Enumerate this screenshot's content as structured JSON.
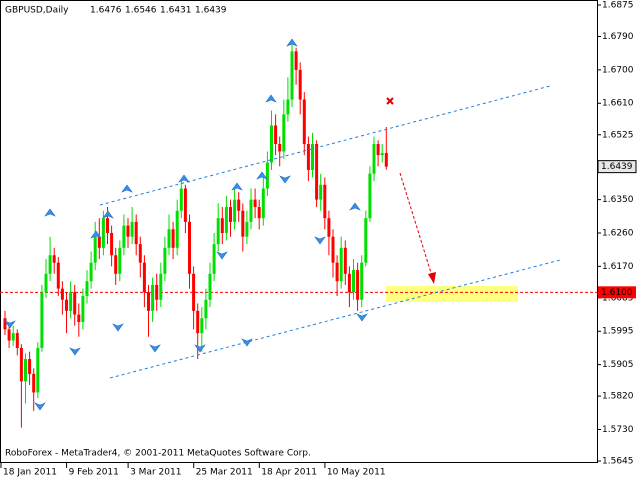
{
  "chart_data": {
    "type": "candlestick",
    "symbol": "GBPUSD,Daily",
    "credit": "RoboForex - MetaTrader4, © 2001-2011 MetaQuotes Software Corp.",
    "up_color": "#00e000",
    "down_color": "#ff0000",
    "categories": [
      "18 Jan 2011",
      null,
      null,
      null,
      null,
      null,
      null,
      null,
      null,
      null,
      null,
      null,
      null,
      null,
      null,
      null,
      "9 Feb 2011",
      null,
      null,
      null,
      null,
      null,
      null,
      null,
      null,
      null,
      null,
      null,
      null,
      null,
      null,
      "3 Mar 2011",
      null,
      null,
      null,
      null,
      null,
      null,
      null,
      null,
      null,
      null,
      null,
      null,
      null,
      null,
      null,
      "25 Mar 2011",
      null,
      null,
      null,
      null,
      null,
      null,
      null,
      null,
      null,
      null,
      null,
      null,
      null,
      null,
      null,
      "18 Apr 2011",
      null,
      null,
      null,
      null,
      null,
      null,
      null,
      null,
      null,
      null,
      null,
      null,
      null,
      null,
      null,
      "10 May 2011",
      null,
      null,
      null,
      null,
      null,
      null,
      null,
      null,
      null,
      null,
      null,
      null,
      null,
      null
    ],
    "open": [
      1.603,
      1.6,
      1.597,
      1.599,
      1.595,
      1.586,
      1.592,
      1.588,
      1.583,
      1.595,
      1.61,
      1.615,
      1.62,
      1.618,
      1.611,
      1.608,
      1.605,
      1.61,
      1.604,
      1.602,
      1.609,
      1.613,
      1.618,
      1.625,
      1.622,
      1.63,
      1.626,
      1.62,
      1.615,
      1.622,
      1.628,
      1.625,
      1.629,
      1.623,
      1.618,
      1.61,
      1.605,
      1.612,
      1.608,
      1.615,
      1.622,
      1.627,
      1.622,
      1.632,
      1.638,
      1.629,
      1.615,
      1.605,
      1.599,
      1.603,
      1.608,
      1.615,
      1.623,
      1.63,
      1.626,
      1.633,
      1.629,
      1.635,
      1.632,
      1.625,
      1.629,
      1.635,
      1.633,
      1.63,
      1.638,
      1.645,
      1.655,
      1.65,
      1.648,
      1.658,
      1.662,
      1.675,
      1.67,
      1.662,
      1.65,
      1.643,
      1.65,
      1.635,
      1.639,
      1.63,
      1.625,
      1.618,
      1.613,
      1.622,
      1.615,
      1.61,
      1.616,
      1.608,
      1.618,
      1.63,
      1.642,
      1.65,
      1.647,
      1.6476
    ],
    "high": [
      1.605,
      1.6015,
      1.601,
      1.6,
      1.596,
      1.5935,
      1.594,
      1.5895,
      1.5965,
      1.612,
      1.619,
      1.625,
      1.622,
      1.6195,
      1.613,
      1.61,
      1.613,
      1.612,
      1.607,
      1.611,
      1.616,
      1.621,
      1.629,
      1.63,
      1.632,
      1.633,
      1.628,
      1.622,
      1.624,
      1.631,
      1.63,
      1.633,
      1.631,
      1.625,
      1.62,
      1.612,
      1.614,
      1.615,
      1.618,
      1.625,
      1.631,
      1.629,
      1.635,
      1.64,
      1.639,
      1.631,
      1.617,
      1.607,
      1.606,
      1.611,
      1.618,
      1.626,
      1.634,
      1.633,
      1.636,
      1.635,
      1.638,
      1.637,
      1.634,
      1.632,
      1.638,
      1.638,
      1.635,
      1.642,
      1.648,
      1.659,
      1.658,
      1.652,
      1.662,
      1.668,
      1.677,
      1.676,
      1.672,
      1.664,
      1.652,
      1.653,
      1.651,
      1.642,
      1.641,
      1.632,
      1.627,
      1.62,
      1.625,
      1.624,
      1.617,
      1.619,
      1.618,
      1.62,
      1.632,
      1.644,
      1.652,
      1.651,
      1.65,
      1.6546
    ],
    "low": [
      1.5985,
      1.595,
      1.5955,
      1.593,
      1.5735,
      1.58,
      1.585,
      1.578,
      1.5815,
      1.594,
      1.6085,
      1.613,
      1.615,
      1.609,
      1.604,
      1.599,
      1.603,
      1.601,
      1.598,
      1.6,
      1.607,
      1.611,
      1.616,
      1.619,
      1.62,
      1.623,
      1.617,
      1.612,
      1.613,
      1.62,
      1.622,
      1.623,
      1.62,
      1.614,
      1.606,
      1.598,
      1.602,
      1.605,
      1.606,
      1.613,
      1.62,
      1.619,
      1.62,
      1.63,
      1.626,
      1.611,
      1.6,
      1.592,
      1.594,
      1.6,
      1.606,
      1.613,
      1.621,
      1.623,
      1.624,
      1.625,
      1.627,
      1.629,
      1.621,
      1.623,
      1.627,
      1.63,
      1.627,
      1.628,
      1.636,
      1.643,
      1.647,
      1.644,
      1.646,
      1.656,
      1.66,
      1.666,
      1.658,
      1.647,
      1.64,
      1.641,
      1.633,
      1.632,
      1.627,
      1.62,
      1.614,
      1.609,
      1.611,
      1.612,
      1.606,
      1.608,
      1.605,
      1.606,
      1.617,
      1.629,
      1.64,
      1.644,
      1.645,
      1.6431
    ],
    "close": [
      1.6,
      1.597,
      1.599,
      1.595,
      1.586,
      1.592,
      1.588,
      1.583,
      1.595,
      1.61,
      1.615,
      1.62,
      1.618,
      1.611,
      1.608,
      1.605,
      1.61,
      1.604,
      1.602,
      1.609,
      1.613,
      1.618,
      1.625,
      1.622,
      1.63,
      1.626,
      1.62,
      1.615,
      1.622,
      1.628,
      1.625,
      1.629,
      1.623,
      1.618,
      1.61,
      1.605,
      1.612,
      1.608,
      1.615,
      1.622,
      1.627,
      1.622,
      1.632,
      1.638,
      1.629,
      1.615,
      1.605,
      1.599,
      1.603,
      1.608,
      1.615,
      1.623,
      1.63,
      1.626,
      1.633,
      1.629,
      1.635,
      1.632,
      1.625,
      1.629,
      1.635,
      1.633,
      1.63,
      1.638,
      1.645,
      1.655,
      1.65,
      1.648,
      1.658,
      1.662,
      1.675,
      1.67,
      1.662,
      1.65,
      1.643,
      1.65,
      1.635,
      1.639,
      1.63,
      1.625,
      1.618,
      1.613,
      1.622,
      1.615,
      1.61,
      1.616,
      1.608,
      1.618,
      1.63,
      1.642,
      1.65,
      1.647,
      1.6476,
      1.6439
    ],
    "ylim": [
      1.5645,
      1.6875
    ],
    "yticks": [
      {
        "value": 1.6875,
        "label": "1.6875"
      },
      {
        "value": 1.679,
        "label": "1.6790"
      },
      {
        "value": 1.67,
        "label": "1.6700"
      },
      {
        "value": 1.661,
        "label": "1.6610"
      },
      {
        "value": 1.6525,
        "label": "1.6525"
      },
      {
        "value": 1.635,
        "label": "1.6350"
      },
      {
        "value": 1.626,
        "label": "1.6260"
      },
      {
        "value": 1.617,
        "label": "1.6170"
      },
      {
        "value": 1.6085,
        "label": "1.6085"
      },
      {
        "value": 1.5995,
        "label": "1.5995"
      },
      {
        "value": 1.5905,
        "label": "1.5905"
      },
      {
        "value": 1.582,
        "label": "1.5820"
      },
      {
        "value": 1.573,
        "label": "1.5730"
      },
      {
        "value": 1.5645,
        "label": "1.5645"
      }
    ],
    "level": {
      "value": 1.61,
      "label": "1.6100",
      "color": "#ff0000"
    }
  }
}
